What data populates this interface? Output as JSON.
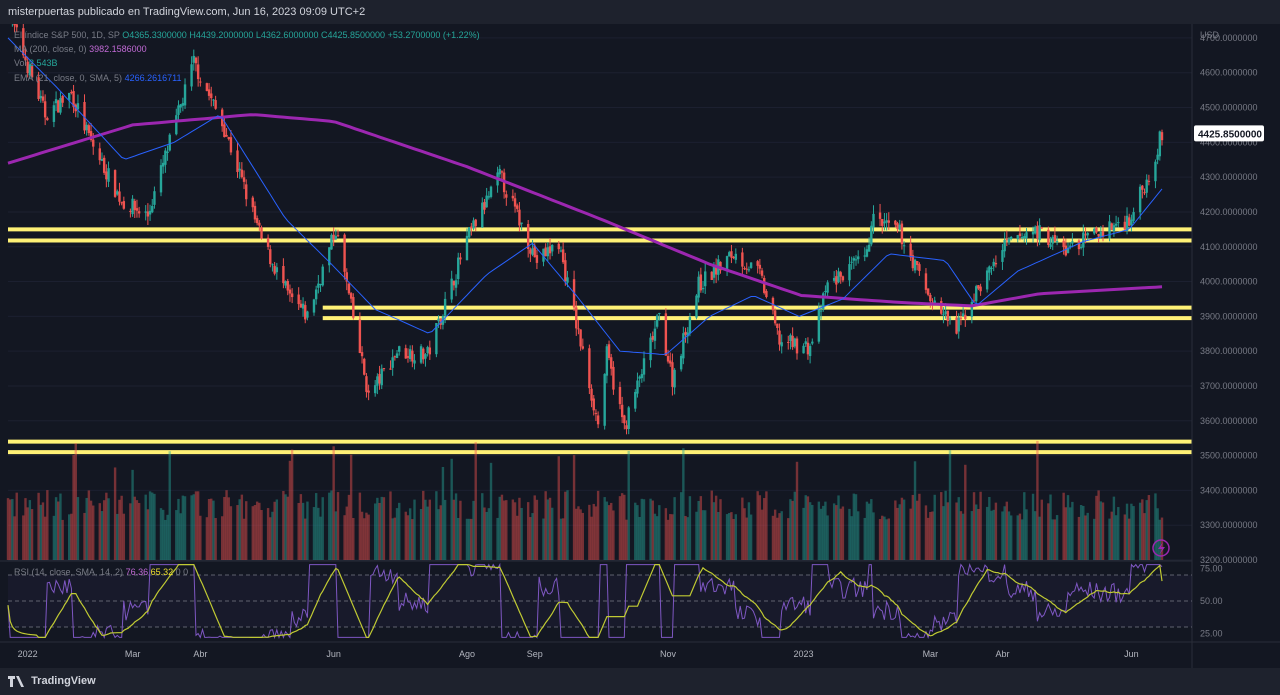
{
  "header": {
    "publish_info": "misterpuertas publicado en TradingView.com, Jun 16, 2023 09:09 UTC+2"
  },
  "footer": {
    "brand": "TradingView"
  },
  "legend": {
    "symbol": "El índice S&P 500, 1D, SP",
    "open": "O4365.3300000",
    "high": "H4439.2000000",
    "low": "L4362.6000000",
    "close": "C4425.8500000",
    "change": "+53.2700000 (+1.22%)",
    "ma_label": "MA (200, close, 0)",
    "ma_value": "3982.1586000",
    "vol_label": "Vol",
    "vol_value": "2.543B",
    "ema_label": "EMA (21, close, 0, SMA, 5)",
    "ema_value": "4266.2616711",
    "rsi_label": "RSI (14, close, SMA, 14, 2)",
    "rsi_value": "76.36",
    "rsi_ma_value": "65.32",
    "rsi_extra": "0 0"
  },
  "colors": {
    "background": "#131722",
    "up": "#26a69a",
    "down": "#ef5350",
    "ma200": "#9c27b0",
    "ema21": "#2962ff",
    "levels": "#fff176",
    "rsi": "#7e57c2",
    "rsi_ma": "#c0ca33",
    "price_label": "#ffffff"
  },
  "chart_data": [
    {
      "type": "candlestick",
      "title": "El índice S&P 500, 1D, SP",
      "currency": "USD",
      "y_ticks": [
        "4700.0000000",
        "4600.0000000",
        "4500.0000000",
        "4400.0000000",
        "4300.0000000",
        "4200.0000000",
        "4100.0000000",
        "4000.0000000",
        "3900.0000000",
        "3800.0000000",
        "3700.0000000",
        "3600.0000000",
        "3500.0000000",
        "3400.0000000",
        "3300.0000000",
        "3200.0000000"
      ],
      "ylim": [
        3200,
        4740
      ],
      "x_ticks": [
        "2022",
        "Mar",
        "Abr",
        "Jun",
        "Ago",
        "Sep",
        "Nov",
        "2023",
        "Mar",
        "Abr",
        "Jun"
      ],
      "last_price_label": "4425.8500000",
      "price_path": [
        [
          "2022-01-03",
          4780
        ],
        [
          "2022-01-20",
          4480
        ],
        [
          "2022-02-01",
          4540
        ],
        [
          "2022-02-10",
          4400
        ],
        [
          "2022-02-24",
          4230
        ],
        [
          "2022-03-08",
          4190
        ],
        [
          "2022-03-29",
          4630
        ],
        [
          "2022-04-12",
          4440
        ],
        [
          "2022-04-29",
          4120
        ],
        [
          "2022-05-12",
          3950
        ],
        [
          "2022-05-20",
          3900
        ],
        [
          "2022-06-02",
          4150
        ],
        [
          "2022-06-17",
          3670
        ],
        [
          "2022-06-30",
          3800
        ],
        [
          "2022-07-14",
          3790
        ],
        [
          "2022-08-01",
          4120
        ],
        [
          "2022-08-16",
          4305
        ],
        [
          "2022-09-02",
          4060
        ],
        [
          "2022-09-12",
          4110
        ],
        [
          "2022-09-30",
          3590
        ],
        [
          "2022-10-04",
          3790
        ],
        [
          "2022-10-12",
          3580
        ],
        [
          "2022-10-28",
          3900
        ],
        [
          "2022-11-03",
          3720
        ],
        [
          "2022-11-15",
          3990
        ],
        [
          "2022-12-01",
          4080
        ],
        [
          "2022-12-13",
          4020
        ],
        [
          "2022-12-22",
          3830
        ],
        [
          "2023-01-05",
          3810
        ],
        [
          "2023-01-13",
          3990
        ],
        [
          "2023-01-31",
          4070
        ],
        [
          "2023-02-02",
          4180
        ],
        [
          "2023-02-15",
          4140
        ],
        [
          "2023-03-01",
          3950
        ],
        [
          "2023-03-13",
          3860
        ],
        [
          "2023-03-21",
          3960
        ],
        [
          "2023-04-04",
          4100
        ],
        [
          "2023-04-18",
          4150
        ],
        [
          "2023-05-02",
          4090
        ],
        [
          "2023-05-15",
          4135
        ],
        [
          "2023-05-31",
          4180
        ],
        [
          "2023-06-08",
          4290
        ],
        [
          "2023-06-15",
          4425.85
        ]
      ],
      "ma200_path": [
        [
          "2022-01-03",
          4340
        ],
        [
          "2022-03-01",
          4450
        ],
        [
          "2022-04-25",
          4480
        ],
        [
          "2022-06-01",
          4460
        ],
        [
          "2022-08-01",
          4330
        ],
        [
          "2022-10-01",
          4180
        ],
        [
          "2022-11-20",
          4050
        ],
        [
          "2023-01-01",
          3960
        ],
        [
          "2023-02-15",
          3940
        ],
        [
          "2023-03-20",
          3930
        ],
        [
          "2023-04-20",
          3965
        ],
        [
          "2023-06-15",
          3985
        ]
      ],
      "ema21_path": [
        [
          "2022-01-03",
          4700
        ],
        [
          "2022-01-25",
          4560
        ],
        [
          "2022-02-25",
          4350
        ],
        [
          "2022-03-20",
          4400
        ],
        [
          "2022-04-10",
          4480
        ],
        [
          "2022-05-10",
          4180
        ],
        [
          "2022-05-31",
          4050
        ],
        [
          "2022-06-20",
          3920
        ],
        [
          "2022-07-15",
          3850
        ],
        [
          "2022-08-10",
          4020
        ],
        [
          "2022-08-31",
          4110
        ],
        [
          "2022-09-20",
          3960
        ],
        [
          "2022-10-10",
          3800
        ],
        [
          "2022-10-31",
          3790
        ],
        [
          "2022-11-20",
          3900
        ],
        [
          "2022-12-10",
          3960
        ],
        [
          "2022-12-31",
          3900
        ],
        [
          "2023-01-20",
          3950
        ],
        [
          "2023-02-10",
          4080
        ],
        [
          "2023-03-08",
          4060
        ],
        [
          "2023-03-22",
          3930
        ],
        [
          "2023-04-10",
          4030
        ],
        [
          "2023-05-10",
          4115
        ],
        [
          "2023-05-31",
          4150
        ],
        [
          "2023-06-15",
          4266.26
        ]
      ],
      "horizontal_levels": [
        [
          4150,
          4118
        ],
        [
          3925,
          3895
        ],
        [
          3540,
          3510
        ]
      ],
      "volume": "Vol 2.543B"
    },
    {
      "type": "line",
      "title": "RSI (14, close, SMA, 14, 2)",
      "y_ticks": [
        "75.00",
        "50.00",
        "25.00"
      ],
      "ylim": [
        20,
        80
      ],
      "levels": [
        70,
        50,
        30
      ],
      "last_rsi": 76.36,
      "last_rsi_ma": 65.32
    }
  ]
}
